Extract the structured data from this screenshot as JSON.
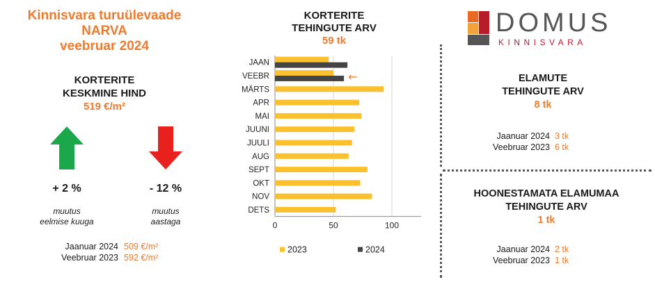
{
  "left_panel": {
    "title_line1": "Kinnisvara turuülevaade",
    "title_line2": "NARVA",
    "title_line3": "veebruar 2024",
    "price_heading_line1": "KORTERITE",
    "price_heading_line2": "KESKMINE HIND",
    "price_value": "519 €/m²",
    "monthly_change": "+ 2 %",
    "monthly_note_line1": "muutus",
    "monthly_note_line2": "eelmise kuuga",
    "yearly_change": "- 12 %",
    "yearly_note_line1": "muutus",
    "yearly_note_line2": "aastaga",
    "compare1_label": "Jaanuar 2024",
    "compare1_value": "509 €/m²",
    "compare2_label": "Veebruar 2023",
    "compare2_value": "592 €/m²",
    "up_color": "#1aa84a",
    "down_color": "#e8201e"
  },
  "chart_header": {
    "line1": "KORTERITE",
    "line2": "TEHINGUTE ARV",
    "value": "59 tk"
  },
  "chart_data": {
    "type": "bar",
    "orientation": "horizontal",
    "categories": [
      "JAAN",
      "VEEBR",
      "MÄRTS",
      "APR",
      "MAI",
      "JUUNI",
      "JUULI",
      "AUG",
      "SEPT",
      "OKT",
      "NOV",
      "DETS"
    ],
    "series": [
      {
        "name": "2023",
        "color": "#fbc02d",
        "values": [
          46,
          50,
          93,
          72,
          74,
          68,
          66,
          63,
          79,
          73,
          83,
          52
        ]
      },
      {
        "name": "2024",
        "color": "#444444",
        "values": [
          62,
          59,
          null,
          null,
          null,
          null,
          null,
          null,
          null,
          null,
          null,
          null
        ]
      }
    ],
    "xlim": [
      0,
      125
    ],
    "xticks": [
      0,
      50,
      100
    ],
    "grid": true,
    "legend": "bottom",
    "marker_category": "VEEBR",
    "marker_symbol": "←"
  },
  "logo": {
    "name": "DOMUS",
    "tagline": "KINNISVARA"
  },
  "houses": {
    "heading_line1": "ELAMUTE",
    "heading_line2": "TEHINGUTE ARV",
    "value": "8 tk",
    "compare1_label": "Jaanuar 2024",
    "compare1_value": "3 tk",
    "compare2_label": "Veebruar 2023",
    "compare2_value": "6 tk"
  },
  "land": {
    "heading_line1": "HOONESTAMATA ELAMUMAA",
    "heading_line2": "TEHINGUTE ARV",
    "value": "1 tk",
    "compare1_label": "Jaanuar 2024",
    "compare1_value": "2 tk",
    "compare2_label": "Veebruar 2023",
    "compare2_value": "1 tk"
  }
}
